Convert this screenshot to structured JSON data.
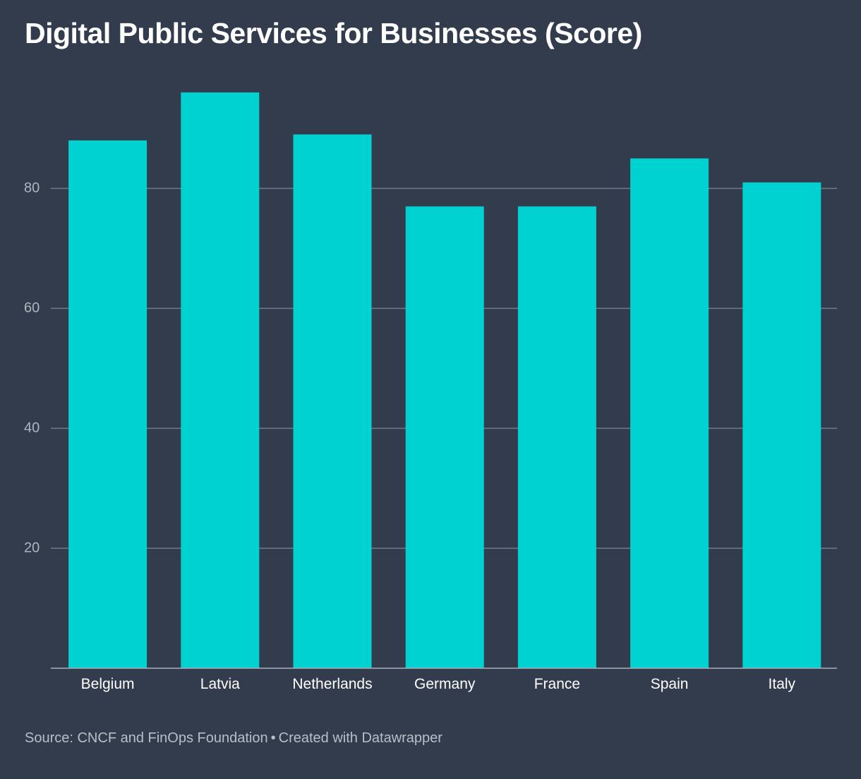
{
  "chart_data": {
    "type": "bar",
    "title": "Digital Public Services for Businesses (Score)",
    "categories": [
      "Belgium",
      "Latvia",
      "Netherlands",
      "Germany",
      "France",
      "Spain",
      "Italy"
    ],
    "values": [
      88,
      96,
      89,
      77,
      77,
      85,
      81
    ],
    "xlabel": "",
    "ylabel": "",
    "ylim": [
      0,
      96
    ],
    "yticks": [
      20,
      40,
      60,
      80
    ],
    "grid": true,
    "legend": "none"
  },
  "footer": {
    "source": "Source: CNCF and FinOps Foundation",
    "separator": "•",
    "credit": "Created with Datawrapper"
  },
  "colors": {
    "background": "#333c4d",
    "bar": "#00d1d1",
    "grid": "#7d8593",
    "axis_text": "#aeb4be",
    "category_text": "#ffffff"
  }
}
